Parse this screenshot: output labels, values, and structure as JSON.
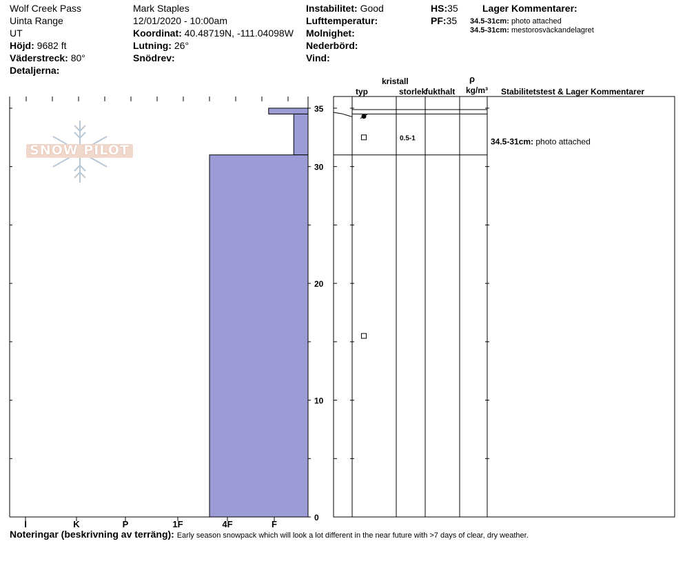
{
  "header": {
    "location": "Wolf Creek Pass",
    "range": "Uinta Range",
    "state": "UT",
    "elevation_label": "Höjd:",
    "elevation": "9682 ft",
    "aspect_label": "Väderstreck:",
    "aspect": "80°",
    "details_label": "Detaljerna:",
    "observer": "Mark Staples",
    "datetime": "12/01/2020 - 10:00am",
    "coord_label": "Koordinat:",
    "coord": "40.48719N, -111.04098W",
    "slope_label": "Lutning:",
    "slope": "26°",
    "drift_label": "Snödrev:",
    "stability_label": "Instabilitet:",
    "stability": "Good",
    "airtemp_label": "Lufttemperatur:",
    "clouds_label": "Molnighet:",
    "precip_label": "Nederbörd:",
    "wind_label": "Vind:",
    "hs_label": "HS:",
    "hs": "35",
    "pf_label": "PF:",
    "pf": "35",
    "layer_comments_title": "Lager Kommentarer:",
    "layer_comments": [
      {
        "range": "34.5-31cm:",
        "text": "photo attached"
      },
      {
        "range": "34.5-31cm:",
        "text": "mestorosväckandelagret"
      }
    ]
  },
  "columns": {
    "crystal": "kristall",
    "type": "typ",
    "size": "storlek",
    "moisture": "fukthalt",
    "density_symbol": "ρ",
    "density_unit": "kg/m³",
    "stability_comments": "Stabilitetstest & Lager Kommentarer"
  },
  "logo_text": "SNOW PILOT",
  "notes": {
    "label": "Noteringar (beskrivning av terräng):",
    "text": "Early season snowpack which will look a lot different in the near future with >7 days of clear, dry weather."
  },
  "chart_data": {
    "type": "bar",
    "orientation": "horizontal",
    "y_range": [
      0,
      36
    ],
    "y_ticks": [
      "0",
      "10",
      "20",
      "30",
      "35"
    ],
    "hardness_categories": [
      "I",
      "K",
      "P",
      "1F",
      "4F",
      "F"
    ],
    "fill_color": "#9b9bd6",
    "layers": [
      {
        "top": 35,
        "bottom": 34.5,
        "hardness": 0.4
      },
      {
        "top": 34.5,
        "bottom": 31,
        "hardness": 0.145
      },
      {
        "top": 31,
        "bottom": 0,
        "hardness": 1.0
      }
    ],
    "hardness_unit_note": "hardness expressed as fraction of bar width from right edge to 4F",
    "grain_boundaries": [
      35,
      34.5,
      31
    ],
    "grains": [
      {
        "depth": 34.3,
        "symbol": "rounded-filled"
      },
      {
        "depth": 32.5,
        "symbol": "square",
        "size": "0.5-1"
      },
      {
        "depth": 15.5,
        "symbol": "square"
      }
    ],
    "stability_comments": [
      {
        "depth": 32.5,
        "range": "34.5-31cm:",
        "text": "photo attached"
      }
    ]
  }
}
